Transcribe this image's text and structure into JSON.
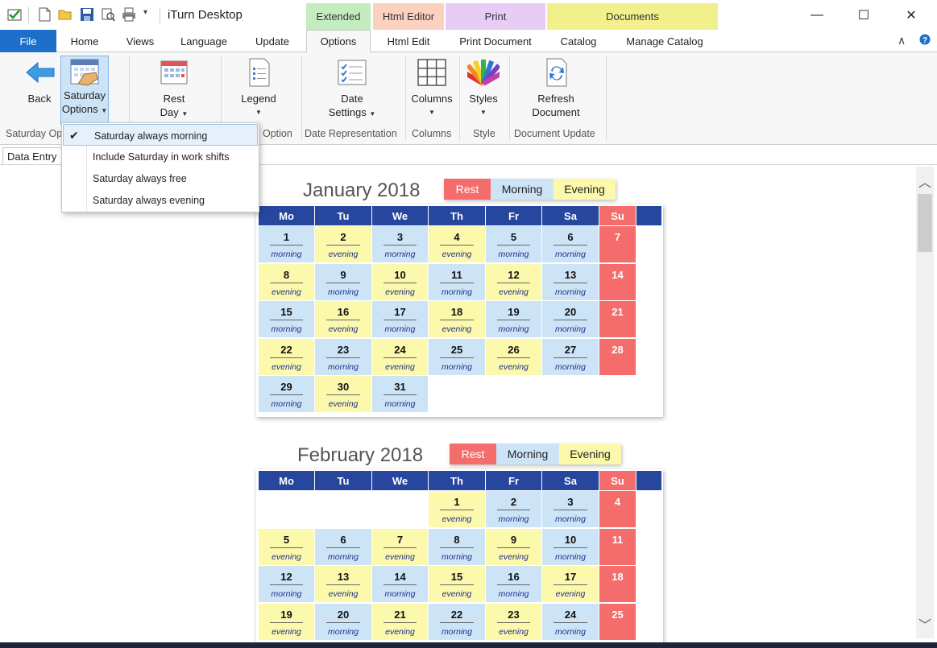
{
  "window": {
    "title": "iTurn Desktop",
    "minimize": "—",
    "maximize": "☐",
    "close": "✕"
  },
  "context_groups": {
    "extended": "Extended",
    "html_editor": "Html Editor",
    "print": "Print",
    "documents": "Documents"
  },
  "tabs": {
    "file": "File",
    "home": "Home",
    "views": "Views",
    "language": "Language",
    "update": "Update",
    "options": "Options",
    "html_edit": "Html Edit",
    "print_document": "Print Document",
    "catalog": "Catalog",
    "manage_catalog": "Manage Catalog"
  },
  "ribbon": {
    "back": "Back",
    "saturday_options_1": "Saturday",
    "saturday_options_2": "Options",
    "rest_day_1": "Rest",
    "rest_day_2": "Day",
    "legend": "Legend",
    "date_settings_1": "Date",
    "date_settings_2": "Settings",
    "columns": "Columns",
    "styles": "Styles",
    "refresh_1": "Refresh",
    "refresh_2": "Document",
    "groups": {
      "saturday_options": "Saturday Op",
      "option": "Option",
      "date_representation": "Date Representation",
      "columns": "Columns",
      "style": "Style",
      "document_update": "Document Update"
    }
  },
  "dropdown": {
    "items": [
      "Saturday always morning",
      "Include Saturday in work shifts",
      "Saturday always free",
      "Saturday always evening"
    ],
    "checkmark": "✔"
  },
  "document_tab": "Data Entry",
  "colors": {
    "morning": "#cde4f7",
    "evening": "#fcf9ad",
    "rest": "#f46c6c",
    "header": "#27479e",
    "accent": "#1e6fc9"
  },
  "legend_labels": {
    "rest": "Rest",
    "morning": "Morning",
    "evening": "Evening"
  },
  "weekdays": [
    "Mo",
    "Tu",
    "We",
    "Th",
    "Fr",
    "Sa",
    "Su"
  ],
  "months": [
    {
      "title": "January 2018",
      "offset": 0,
      "days": [
        {
          "n": "1",
          "s": "morning"
        },
        {
          "n": "2",
          "s": "evening"
        },
        {
          "n": "3",
          "s": "morning"
        },
        {
          "n": "4",
          "s": "evening"
        },
        {
          "n": "5",
          "s": "morning"
        },
        {
          "n": "6",
          "s": "morning"
        },
        {
          "n": "7",
          "s": ""
        },
        {
          "n": "8",
          "s": "evening"
        },
        {
          "n": "9",
          "s": "morning"
        },
        {
          "n": "10",
          "s": "evening"
        },
        {
          "n": "11",
          "s": "morning"
        },
        {
          "n": "12",
          "s": "evening"
        },
        {
          "n": "13",
          "s": "morning"
        },
        {
          "n": "14",
          "s": ""
        },
        {
          "n": "15",
          "s": "morning"
        },
        {
          "n": "16",
          "s": "evening"
        },
        {
          "n": "17",
          "s": "morning"
        },
        {
          "n": "18",
          "s": "evening"
        },
        {
          "n": "19",
          "s": "morning"
        },
        {
          "n": "20",
          "s": "morning"
        },
        {
          "n": "21",
          "s": ""
        },
        {
          "n": "22",
          "s": "evening"
        },
        {
          "n": "23",
          "s": "morning"
        },
        {
          "n": "24",
          "s": "evening"
        },
        {
          "n": "25",
          "s": "morning"
        },
        {
          "n": "26",
          "s": "evening"
        },
        {
          "n": "27",
          "s": "morning"
        },
        {
          "n": "28",
          "s": ""
        },
        {
          "n": "29",
          "s": "morning"
        },
        {
          "n": "30",
          "s": "evening"
        },
        {
          "n": "31",
          "s": "morning"
        }
      ]
    },
    {
      "title": "February 2018",
      "offset": 3,
      "days": [
        {
          "n": "1",
          "s": "evening"
        },
        {
          "n": "2",
          "s": "morning"
        },
        {
          "n": "3",
          "s": "morning"
        },
        {
          "n": "4",
          "s": ""
        },
        {
          "n": "5",
          "s": "evening"
        },
        {
          "n": "6",
          "s": "morning"
        },
        {
          "n": "7",
          "s": "evening"
        },
        {
          "n": "8",
          "s": "morning"
        },
        {
          "n": "9",
          "s": "evening"
        },
        {
          "n": "10",
          "s": "morning"
        },
        {
          "n": "11",
          "s": ""
        },
        {
          "n": "12",
          "s": "morning"
        },
        {
          "n": "13",
          "s": "evening"
        },
        {
          "n": "14",
          "s": "morning"
        },
        {
          "n": "15",
          "s": "evening"
        },
        {
          "n": "16",
          "s": "morning"
        },
        {
          "n": "17",
          "s": "evening"
        },
        {
          "n": "18",
          "s": ""
        },
        {
          "n": "19",
          "s": "evening"
        },
        {
          "n": "20",
          "s": "morning"
        },
        {
          "n": "21",
          "s": "evening"
        },
        {
          "n": "22",
          "s": "morning"
        },
        {
          "n": "23",
          "s": "evening"
        },
        {
          "n": "24",
          "s": "morning"
        },
        {
          "n": "25",
          "s": ""
        }
      ]
    }
  ]
}
